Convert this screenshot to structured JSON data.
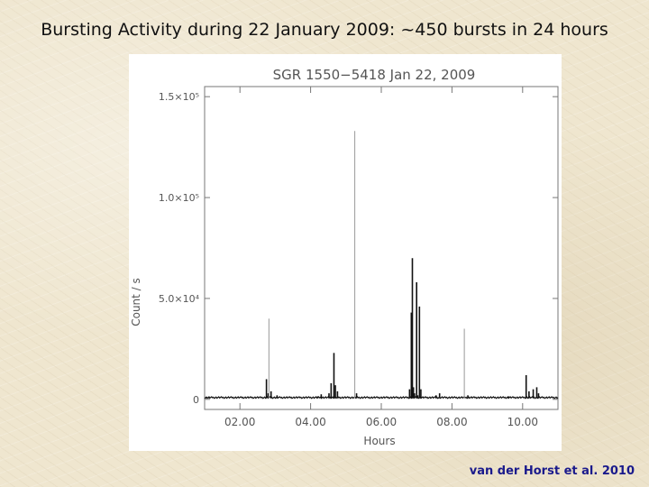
{
  "slide": {
    "title": "Bursting Activity during 22 January 2009: ~450 bursts in 24 hours",
    "citation": "van der Horst et al. 2010"
  },
  "chart_data": {
    "type": "line",
    "title": "SGR 1550−5418 Jan 22, 2009",
    "xlabel": "Hours",
    "ylabel": "Count / s",
    "xlim": [
      1.0,
      11.0
    ],
    "ylim": [
      -5000,
      155000
    ],
    "x_ticks": [
      {
        "value": 2.0,
        "label": "02.00"
      },
      {
        "value": 4.0,
        "label": "04.00"
      },
      {
        "value": 6.0,
        "label": "06.00"
      },
      {
        "value": 8.0,
        "label": "08.00"
      },
      {
        "value": 10.0,
        "label": "10.00"
      }
    ],
    "y_ticks": [
      {
        "value": 0,
        "label": "0"
      },
      {
        "value": 50000,
        "label": "5.0×10⁴"
      },
      {
        "value": 100000,
        "label": "1.0×10⁵"
      },
      {
        "value": 150000,
        "label": "1.5×10⁵"
      }
    ],
    "line_color": "#111111",
    "spike_color": "#999999",
    "baseline_value": 500,
    "bursts": [
      {
        "x": 1.05,
        "y": 1200,
        "tone": "dark"
      },
      {
        "x": 1.12,
        "y": 900,
        "tone": "dark"
      },
      {
        "x": 2.75,
        "y": 10000,
        "tone": "dark"
      },
      {
        "x": 2.8,
        "y": 3000,
        "tone": "dark"
      },
      {
        "x": 2.82,
        "y": 40000,
        "tone": "light"
      },
      {
        "x": 2.88,
        "y": 4000,
        "tone": "dark"
      },
      {
        "x": 3.05,
        "y": 2000,
        "tone": "dark"
      },
      {
        "x": 4.2,
        "y": 1500,
        "tone": "dark"
      },
      {
        "x": 4.3,
        "y": 2500,
        "tone": "dark"
      },
      {
        "x": 4.52,
        "y": 3000,
        "tone": "dark"
      },
      {
        "x": 4.58,
        "y": 8000,
        "tone": "dark"
      },
      {
        "x": 4.66,
        "y": 23000,
        "tone": "dark"
      },
      {
        "x": 4.7,
        "y": 7000,
        "tone": "dark"
      },
      {
        "x": 4.76,
        "y": 4000,
        "tone": "dark"
      },
      {
        "x": 5.25,
        "y": 133000,
        "tone": "light"
      },
      {
        "x": 5.3,
        "y": 3000,
        "tone": "dark"
      },
      {
        "x": 6.8,
        "y": 5000,
        "tone": "dark"
      },
      {
        "x": 6.85,
        "y": 43000,
        "tone": "dark"
      },
      {
        "x": 6.88,
        "y": 70000,
        "tone": "dark"
      },
      {
        "x": 6.91,
        "y": 6000,
        "tone": "dark"
      },
      {
        "x": 6.94,
        "y": 3000,
        "tone": "dark"
      },
      {
        "x": 7.0,
        "y": 58000,
        "tone": "dark"
      },
      {
        "x": 7.03,
        "y": 2000,
        "tone": "dark"
      },
      {
        "x": 7.08,
        "y": 46000,
        "tone": "dark"
      },
      {
        "x": 7.12,
        "y": 5000,
        "tone": "dark"
      },
      {
        "x": 7.55,
        "y": 2000,
        "tone": "dark"
      },
      {
        "x": 7.65,
        "y": 3000,
        "tone": "dark"
      },
      {
        "x": 8.35,
        "y": 35000,
        "tone": "light"
      },
      {
        "x": 8.45,
        "y": 2000,
        "tone": "dark"
      },
      {
        "x": 9.6,
        "y": 1500,
        "tone": "dark"
      },
      {
        "x": 10.1,
        "y": 12000,
        "tone": "dark"
      },
      {
        "x": 10.18,
        "y": 4000,
        "tone": "dark"
      },
      {
        "x": 10.3,
        "y": 5000,
        "tone": "dark"
      },
      {
        "x": 10.4,
        "y": 6000,
        "tone": "dark"
      },
      {
        "x": 10.45,
        "y": 3000,
        "tone": "dark"
      }
    ]
  }
}
